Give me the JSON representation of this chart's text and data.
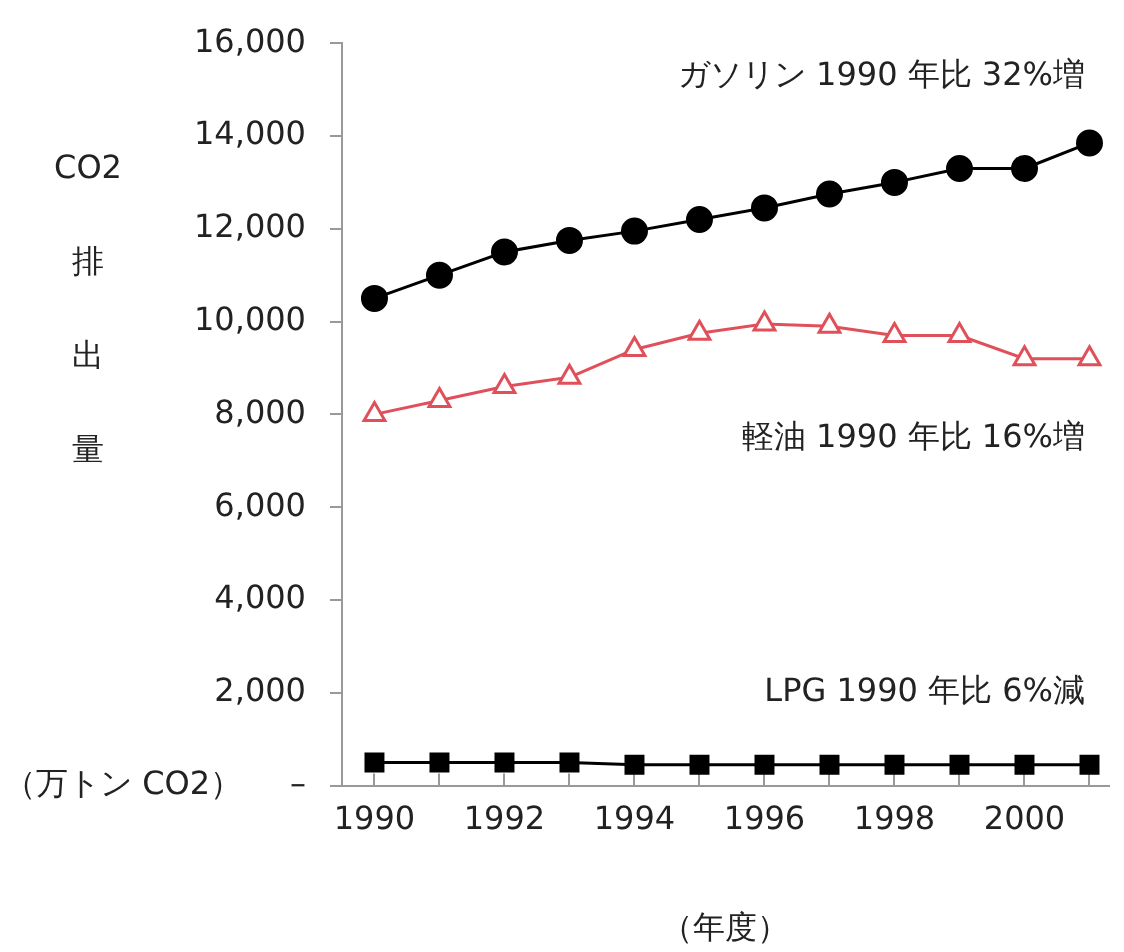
{
  "chart_data": {
    "type": "line",
    "ylabel": "CO2 排出量",
    "xlabel": "（年度）",
    "annotations": [
      "（万トン CO2）"
    ],
    "x": [
      1990,
      1991,
      1992,
      1993,
      1994,
      1995,
      1996,
      1997,
      1998,
      1999,
      2000,
      2001
    ],
    "xlim": [
      1989.5,
      2001.3
    ],
    "xticks": [
      1990,
      {
        "value": 1991,
        "label": null
      },
      1992,
      {
        "value": 1993,
        "label": null
      },
      1994,
      {
        "value": 1995,
        "label": null
      },
      1996,
      {
        "value": 1997,
        "label": null
      },
      1998,
      {
        "value": 1999,
        "label": null
      },
      2000,
      {
        "value": 2001,
        "label": null
      }
    ],
    "ylim": [
      0,
      16000
    ],
    "yticks": [
      {
        "value": 0,
        "label": "–"
      },
      {
        "value": 2000,
        "label": "2,000"
      },
      {
        "value": 4000,
        "label": "4,000"
      },
      {
        "value": 6000,
        "label": "6,000"
      },
      {
        "value": 8000,
        "label": "8,000"
      },
      {
        "value": 10000,
        "label": "10,000"
      },
      {
        "value": 12000,
        "label": "12,000"
      },
      {
        "value": 14000,
        "label": "14,000"
      },
      {
        "value": 16000,
        "label": "16,000"
      }
    ],
    "series": [
      {
        "name": "ガソリン 1990 年比 32%増",
        "color": "#000000",
        "marker": "circle",
        "values": [
          10500,
          11000,
          11500,
          11750,
          11950,
          12200,
          12450,
          12750,
          13000,
          13300,
          13300,
          13850
        ]
      },
      {
        "name": "軽油 1990 年比 16%増",
        "color": "#e0505a",
        "marker": "triangle",
        "values": [
          8000,
          8300,
          8600,
          8800,
          9400,
          9750,
          9950,
          9900,
          9700,
          9700,
          9200,
          9200
        ]
      },
      {
        "name": "LPG 1990 年比 6%減",
        "color": "#000000",
        "marker": "square",
        "values": [
          500,
          500,
          500,
          500,
          450,
          450,
          450,
          450,
          450,
          450,
          450,
          450
        ]
      }
    ],
    "grid": false,
    "legend": false
  }
}
